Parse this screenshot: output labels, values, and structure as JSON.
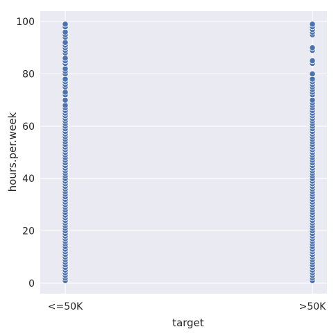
{
  "chart_data": {
    "type": "scatter",
    "xlabel": "target",
    "ylabel": "hours.per.week",
    "categories": [
      "<=50K",
      ">50K"
    ],
    "ylim": [
      -4,
      104
    ],
    "yticks": [
      0,
      20,
      40,
      60,
      80,
      100
    ],
    "grid": true,
    "point_color": "#4c72b0",
    "background_color": "#eaeaf2",
    "series": [
      {
        "category": "<=50K",
        "values": [
          1,
          2,
          3,
          4,
          5,
          6,
          7,
          8,
          9,
          10,
          11,
          12,
          13,
          14,
          15,
          16,
          17,
          18,
          19,
          20,
          21,
          22,
          23,
          24,
          25,
          26,
          27,
          28,
          29,
          30,
          31,
          32,
          33,
          34,
          35,
          36,
          37,
          38,
          39,
          40,
          41,
          42,
          43,
          44,
          45,
          46,
          47,
          48,
          49,
          50,
          51,
          52,
          53,
          54,
          55,
          56,
          57,
          58,
          59,
          60,
          61,
          62,
          63,
          64,
          65,
          66,
          67,
          68,
          70,
          72,
          73,
          75,
          76,
          77,
          78,
          80,
          81,
          82,
          84,
          85,
          86,
          88,
          89,
          90,
          91,
          92,
          94,
          95,
          96,
          98,
          99
        ]
      },
      {
        "category": ">50K",
        "values": [
          1,
          2,
          3,
          4,
          5,
          6,
          7,
          8,
          9,
          10,
          11,
          12,
          13,
          14,
          15,
          16,
          17,
          18,
          19,
          20,
          21,
          22,
          23,
          24,
          25,
          26,
          27,
          28,
          29,
          30,
          31,
          32,
          33,
          34,
          35,
          36,
          37,
          38,
          39,
          40,
          41,
          42,
          43,
          44,
          45,
          46,
          47,
          48,
          49,
          50,
          51,
          52,
          53,
          54,
          55,
          56,
          57,
          58,
          59,
          60,
          61,
          62,
          63,
          64,
          65,
          66,
          67,
          68,
          69,
          70,
          72,
          73,
          74,
          75,
          76,
          77,
          78,
          80,
          84,
          85,
          89,
          90,
          95,
          96,
          97,
          98,
          99
        ]
      }
    ]
  }
}
